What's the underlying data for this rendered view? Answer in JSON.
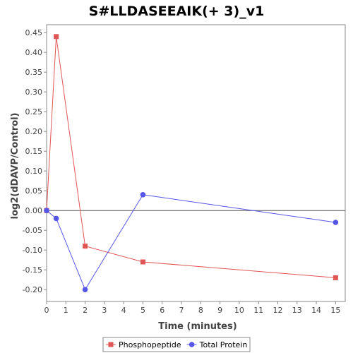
{
  "chart_data": {
    "type": "line",
    "title": "S#LLDASEEAIK(+ 3)_v1",
    "xlabel": "Time (minutes)",
    "ylabel": "log2(dDAVP/Control)",
    "xlim": [
      0,
      15.5
    ],
    "ylim": [
      -0.23,
      0.47
    ],
    "x_ticks": [
      "0",
      "1",
      "2",
      "3",
      "4",
      "5",
      "6",
      "7",
      "8",
      "9",
      "10",
      "11",
      "12",
      "13",
      "14",
      "15"
    ],
    "y_ticks": [
      "0.45",
      "0.40",
      "0.35",
      "0.30",
      "0.25",
      "0.20",
      "0.15",
      "0.10",
      "0.05",
      "0.00",
      "-0.05",
      "-0.10",
      "-0.15",
      "-0.20"
    ],
    "grid": false,
    "zero_line": true,
    "legend_position": "bottom",
    "series": [
      {
        "name": "Phosphopeptide",
        "color": "#e05555",
        "marker": "square",
        "x": [
          0,
          0.5,
          2,
          5,
          15
        ],
        "y": [
          0.0,
          0.44,
          -0.09,
          -0.13,
          -0.17
        ]
      },
      {
        "name": "Total Protein",
        "color": "#5555e8",
        "marker": "circle",
        "x": [
          0,
          0.5,
          2,
          5,
          15
        ],
        "y": [
          0.0,
          -0.02,
          -0.2,
          0.04,
          -0.03
        ]
      }
    ]
  }
}
